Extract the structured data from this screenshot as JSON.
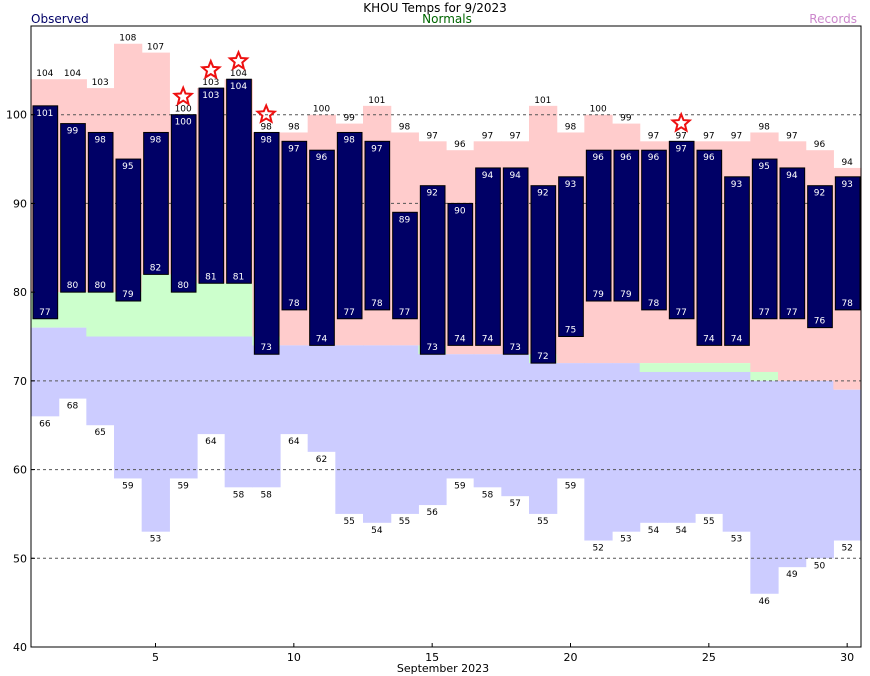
{
  "chart_data": {
    "type": "bar",
    "title": "KHOU Temps for 9/2023",
    "xlabel": "September 2023",
    "legend": [
      {
        "name": "Observed",
        "color": "#000066"
      },
      {
        "name": "Normals",
        "color": "#006600"
      },
      {
        "name": "Records",
        "color": "#cc88cc"
      }
    ],
    "x": [
      1,
      2,
      3,
      4,
      5,
      6,
      7,
      8,
      9,
      10,
      11,
      12,
      13,
      14,
      15,
      16,
      17,
      18,
      19,
      20,
      21,
      22,
      23,
      24,
      25,
      26,
      27,
      28,
      29,
      30
    ],
    "xlim": [
      0.5,
      30.5
    ],
    "x_ticks": [
      5,
      10,
      15,
      20,
      25,
      30
    ],
    "ylim": [
      40,
      110
    ],
    "y_ticks": [
      40,
      50,
      60,
      70,
      80,
      90,
      100
    ],
    "dashed_grid_y": [
      50,
      60,
      70,
      90,
      100
    ],
    "series": [
      {
        "name": "Observed High",
        "values": [
          101,
          99,
          98,
          95,
          98,
          100,
          103,
          104,
          98,
          97,
          96,
          98,
          97,
          89,
          92,
          90,
          94,
          94,
          92,
          93,
          96,
          96,
          96,
          97,
          96,
          93,
          95,
          94,
          92,
          93
        ]
      },
      {
        "name": "Observed Low",
        "values": [
          77,
          80,
          80,
          79,
          82,
          80,
          81,
          81,
          73,
          78,
          74,
          77,
          78,
          77,
          73,
          74,
          74,
          73,
          72,
          75,
          79,
          79,
          78,
          77,
          74,
          74,
          77,
          77,
          76,
          78
        ]
      },
      {
        "name": "Record High",
        "values": [
          104,
          104,
          103,
          108,
          107,
          100,
          103,
          104,
          98,
          98,
          100,
          99,
          101,
          98,
          97,
          96,
          97,
          97,
          101,
          98,
          100,
          99,
          97,
          97,
          97,
          97,
          98,
          97,
          96,
          94
        ]
      },
      {
        "name": "Record Low",
        "values": [
          66,
          68,
          65,
          59,
          53,
          59,
          64,
          58,
          58,
          64,
          62,
          55,
          54,
          55,
          56,
          59,
          58,
          57,
          55,
          59,
          52,
          53,
          54,
          54,
          55,
          53,
          46,
          49,
          50,
          52
        ]
      },
      {
        "name": "Normal High",
        "values": [
          null,
          null,
          null,
          null,
          null,
          null,
          null,
          null,
          null,
          null,
          null,
          null,
          null,
          null,
          null,
          null,
          null,
          null,
          null,
          null,
          null,
          null,
          null,
          null,
          null,
          null,
          null,
          null,
          null,
          null
        ]
      },
      {
        "name": "Normal Low",
        "values": [
          null,
          null,
          null,
          null,
          null,
          null,
          null,
          null,
          null,
          null,
          null,
          null,
          null,
          null,
          null,
          null,
          null,
          null,
          null,
          null,
          null,
          null,
          null,
          null,
          null,
          null,
          null,
          null,
          null,
          null
        ]
      }
    ],
    "normals_band_top": [
      80,
      80,
      80,
      80,
      82,
      82,
      81,
      81,
      75,
      74,
      74,
      74,
      74,
      74,
      74,
      73,
      73,
      73,
      73,
      72,
      72,
      72,
      72,
      72,
      72,
      72,
      71,
      70,
      70,
      69
    ],
    "normals_band_bottom": [
      76,
      76,
      75,
      75,
      75,
      75,
      75,
      75,
      74,
      74,
      74,
      74,
      74,
      74,
      73,
      73,
      73,
      73,
      72,
      72,
      72,
      72,
      71,
      71,
      71,
      71,
      70,
      70,
      70,
      69
    ],
    "record_markers_days": [
      6,
      7,
      8,
      9,
      24
    ],
    "colors": {
      "observed": "#000066",
      "observed_label": "#ffffff",
      "record_high_band": "#ffcccc",
      "normal_band": "#ccffcc",
      "record_low_band": "#ccccff",
      "grid": "#555555",
      "star": "#ee1111"
    }
  }
}
